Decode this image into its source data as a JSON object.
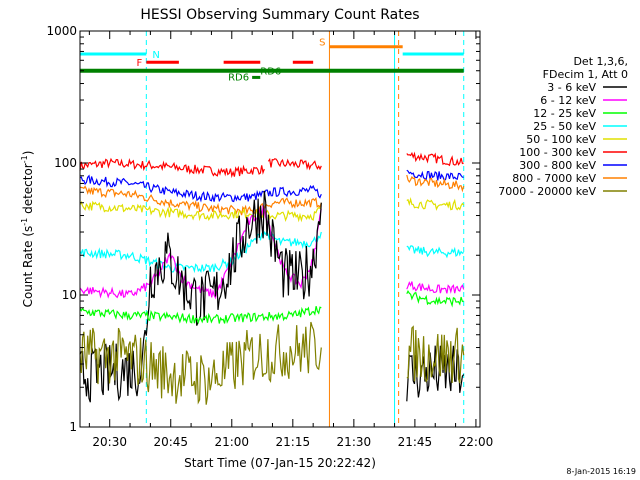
{
  "chart_data": {
    "type": "line",
    "title": "HESSI Observing Summary Count Rates",
    "xlabel": "Start Time (07-Jan-15 20:22:42)",
    "ylabel": "Count Rate (s⁻¹ detector⁻¹)",
    "ylabel_parts": {
      "main": "Count Rate (s",
      "exp1": "-1",
      "mid": " detector",
      "exp2": "-1",
      "end": ")"
    },
    "y_scale": "log",
    "ylim": [
      1,
      1000
    ],
    "x_range_minutes": [
      "20:22:42",
      "22:01:00"
    ],
    "x_ticks": [
      "20:30",
      "20:45",
      "21:00",
      "21:15",
      "21:30",
      "21:45",
      "22:00"
    ],
    "y_ticks": [
      "1",
      "10",
      "100",
      "1000"
    ],
    "legend_header": [
      "Det 1,3,6,",
      "FDecim 1, Att 0"
    ],
    "legend": [
      {
        "label": "3 - 6 keV",
        "color": "#000000"
      },
      {
        "label": "6 - 12 keV",
        "color": "#ff00ff"
      },
      {
        "label": "12 - 25 keV",
        "color": "#00ff00"
      },
      {
        "label": "25 - 50 keV",
        "color": "#00ffff"
      },
      {
        "label": "50 - 100 keV",
        "color": "#e0e000"
      },
      {
        "label": "100 - 300 keV",
        "color": "#ff0000"
      },
      {
        "label": "300 - 800 keV",
        "color": "#0000ff"
      },
      {
        "label": "800 - 7000 keV",
        "color": "#ff8000"
      },
      {
        "label": "7000 - 20000 keV",
        "color": "#808000"
      }
    ],
    "series": [
      {
        "name": "100 - 300 keV",
        "color": "#ff0000",
        "segments": [
          {
            "x": [
              "20:22:42",
              "20:30",
              "20:40",
              "20:50",
              "21:00",
              "21:08"
            ],
            "y": [
              95,
              100,
              96,
              90,
              85,
              90
            ]
          },
          {
            "x": [
              "21:09",
              "21:15",
              "21:22"
            ],
            "y": [
              100,
              98,
              95
            ]
          },
          {
            "x": [
              "21:43",
              "21:50",
              "21:57"
            ],
            "y": [
              115,
              108,
              100
            ]
          }
        ]
      },
      {
        "name": "300 - 800 keV",
        "color": "#0000ff",
        "segments": [
          {
            "x": [
              "20:22:42",
              "20:35",
              "20:45",
              "20:55",
              "21:05",
              "21:10",
              "21:20",
              "21:22"
            ],
            "y": [
              75,
              70,
              60,
              55,
              55,
              60,
              62,
              58
            ]
          },
          {
            "x": [
              "21:43",
              "21:50",
              "21:57"
            ],
            "y": [
              85,
              80,
              78
            ]
          }
        ]
      },
      {
        "name": "800 - 7000 keV",
        "color": "#ff8000",
        "segments": [
          {
            "x": [
              "20:22:42",
              "20:35",
              "20:45",
              "20:55",
              "21:05",
              "21:10",
              "21:20",
              "21:22"
            ],
            "y": [
              62,
              58,
              50,
              45,
              43,
              50,
              50,
              50
            ]
          },
          {
            "x": [
              "21:43",
              "21:50",
              "21:57"
            ],
            "y": [
              75,
              70,
              67
            ]
          }
        ]
      },
      {
        "name": "50 - 100 keV",
        "color": "#e0e000",
        "segments": [
          {
            "x": [
              "20:22:42",
              "20:35",
              "20:45",
              "20:55",
              "21:05",
              "21:10",
              "21:20",
              "21:22"
            ],
            "y": [
              48,
              45,
              42,
              40,
              42,
              40,
              40,
              45
            ]
          },
          {
            "x": [
              "21:43",
              "21:50",
              "21:57"
            ],
            "y": [
              50,
              48,
              48
            ]
          }
        ]
      },
      {
        "name": "25 - 50 keV",
        "color": "#00ffff",
        "segments": [
          {
            "x": [
              "20:22:42",
              "20:35",
              "20:45",
              "20:55",
              "21:00",
              "21:08",
              "21:12",
              "21:20",
              "21:22"
            ],
            "y": [
              21,
              20,
              16,
              16,
              18,
              30,
              25,
              25,
              30
            ]
          },
          {
            "x": [
              "21:43",
              "21:50",
              "21:57"
            ],
            "y": [
              22,
              21,
              21
            ]
          }
        ]
      },
      {
        "name": "6 - 12 keV",
        "color": "#ff00ff",
        "segments": [
          {
            "x": [
              "20:22:42",
              "20:35",
              "20:40",
              "20:45",
              "20:48",
              "20:52",
              "20:56",
              "21:00",
              "21:04",
              "21:08",
              "21:10",
              "21:13",
              "21:17",
              "21:20",
              "21:22"
            ],
            "y": [
              11,
              10,
              12,
              20,
              13,
              11,
              10,
              18,
              35,
              45,
              28,
              15,
              12,
              18,
              45
            ]
          },
          {
            "x": [
              "21:43",
              "21:50",
              "21:57"
            ],
            "y": [
              12,
              11,
              11
            ]
          }
        ]
      },
      {
        "name": "3 - 6 keV",
        "color": "#000000",
        "segments": [
          {
            "x": [
              "20:22:42",
              "20:30",
              "20:38",
              "20:40",
              "20:44",
              "20:48",
              "20:52",
              "20:56",
              "21:00",
              "21:04",
              "21:08",
              "21:10",
              "21:13",
              "21:17",
              "21:20",
              "21:22"
            ],
            "y": [
              2.5,
              2.6,
              2.8,
              14,
              20,
              12,
              9,
              10,
              18,
              35,
              45,
              25,
              14,
              13,
              18,
              50
            ]
          },
          {
            "x": [
              "21:43",
              "21:50",
              "21:57"
            ],
            "y": [
              2.5,
              2.6,
              2.5
            ]
          }
        ]
      },
      {
        "name": "12 - 25 keV",
        "color": "#00ff00",
        "segments": [
          {
            "x": [
              "20:22:42",
              "20:35",
              "20:45",
              "20:55",
              "21:05",
              "21:15",
              "21:22"
            ],
            "y": [
              7.5,
              7,
              6.8,
              6.5,
              6.8,
              7,
              8
            ]
          },
          {
            "x": [
              "21:43",
              "21:50",
              "21:57"
            ],
            "y": [
              10,
              9,
              9
            ]
          }
        ]
      },
      {
        "name": "7000 - 20000 keV",
        "color": "#808000",
        "segments": [
          {
            "x": [
              "20:22:42",
              "20:35",
              "20:45",
              "20:55",
              "21:05",
              "21:15",
              "21:22"
            ],
            "y": [
              3.5,
              3.4,
              2.5,
              2.3,
              3.5,
              3.8,
              4
            ]
          },
          {
            "x": [
              "21:43",
              "21:50",
              "21:57"
            ],
            "y": [
              3.6,
              3.5,
              3.5
            ]
          }
        ]
      }
    ],
    "status_flags": [
      {
        "label": "N",
        "color": "#00ffff",
        "y_level": 670,
        "segments": [
          [
            "20:22:42",
            "20:39"
          ],
          [
            "21:42",
            "21:57"
          ]
        ]
      },
      {
        "label": "F",
        "color": "#ff0000",
        "y_level": 580,
        "segments": [
          [
            "20:39",
            "20:47"
          ],
          [
            "20:58",
            "21:07"
          ],
          [
            "21:15",
            "21:20"
          ]
        ]
      },
      {
        "label": "S",
        "color": "#ff8000",
        "y_level": 760,
        "segments": [
          [
            "21:24",
            "21:42"
          ]
        ]
      },
      {
        "label": "RD6",
        "color": "#008000",
        "y_level": 445,
        "segments": [
          [
            "21:05",
            "21:07"
          ]
        ]
      },
      {
        "label": "RD6",
        "color": "#008000",
        "y_level": 500,
        "segments": [
          [
            "20:22:42",
            "21:57"
          ]
        ]
      }
    ],
    "vertical_markers": [
      {
        "x": "20:22:42",
        "color": "#00ffff",
        "style": "solid"
      },
      {
        "x": "20:39",
        "color": "#00ffff",
        "style": "dashed"
      },
      {
        "x": "21:24",
        "color": "#ff8000",
        "style": "solid"
      },
      {
        "x": "21:40",
        "color": "#00ffff",
        "style": "solid"
      },
      {
        "x": "21:41",
        "color": "#ff8000",
        "style": "dashed"
      },
      {
        "x": "21:57",
        "color": "#00ffff",
        "style": "dashed"
      }
    ]
  },
  "footer": {
    "timestamp": "8-Jan-2015 16:19"
  }
}
